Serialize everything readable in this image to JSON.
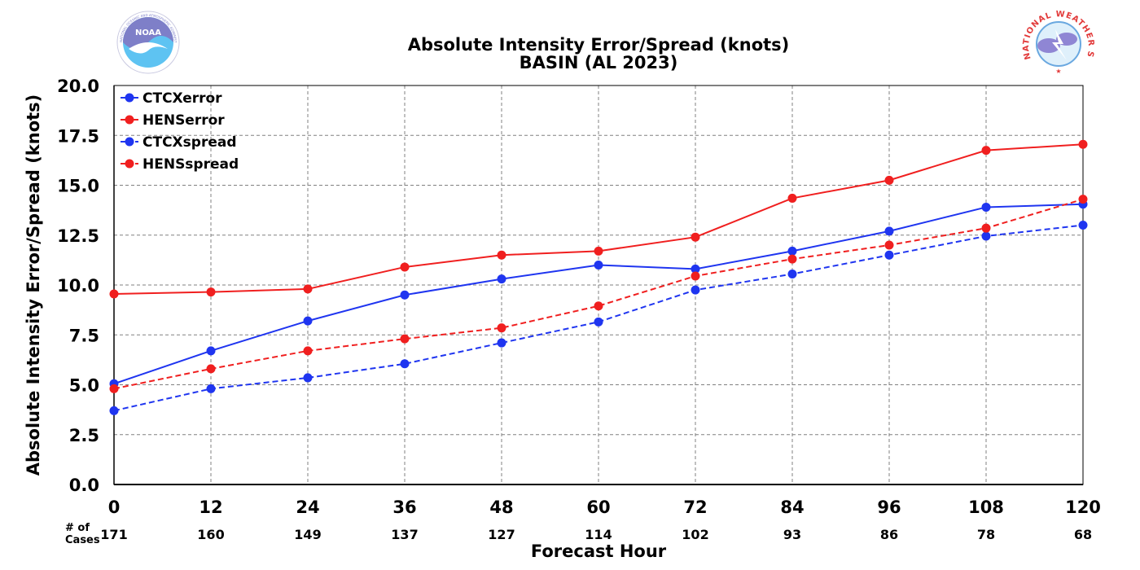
{
  "chart_data": {
    "type": "line",
    "title": "Absolute Intensity Error/Spread (knots)",
    "subtitle": "BASIN (AL 2023)",
    "xlabel": "Forecast Hour",
    "ylabel": "Absolute Intensity Error/Spread (knots)",
    "x": [
      0,
      12,
      24,
      36,
      48,
      60,
      72,
      84,
      96,
      108,
      120
    ],
    "xlim": [
      0,
      120
    ],
    "ylim": [
      0,
      20
    ],
    "yticks": [
      "0.0",
      "2.5",
      "5.0",
      "7.5",
      "10.0",
      "12.5",
      "15.0",
      "17.5",
      "20.0"
    ],
    "grid": true,
    "legend_position": "top-left",
    "cases_label": "# of\nCases",
    "cases": [
      "171",
      "160",
      "149",
      "137",
      "127",
      "114",
      "102",
      "93",
      "86",
      "78",
      "68"
    ],
    "series": [
      {
        "name": "CTCXerror",
        "color": "#1f35f0",
        "dash": "solid",
        "values": [
          5.05,
          6.7,
          8.2,
          9.5,
          10.3,
          11.0,
          10.8,
          11.7,
          12.7,
          13.9,
          14.05
        ]
      },
      {
        "name": "HENSerror",
        "color": "#f01f1f",
        "dash": "solid",
        "values": [
          9.55,
          9.65,
          9.8,
          10.9,
          11.5,
          11.7,
          12.4,
          14.35,
          15.25,
          16.75,
          17.05
        ]
      },
      {
        "name": "CTCXspread",
        "color": "#1f35f0",
        "dash": "dashed",
        "values": [
          3.7,
          4.8,
          5.35,
          6.05,
          7.1,
          8.15,
          9.75,
          10.55,
          11.5,
          12.45,
          13.0
        ]
      },
      {
        "name": "HENSspread",
        "color": "#f01f1f",
        "dash": "dashed",
        "values": [
          4.8,
          5.8,
          6.7,
          7.3,
          7.85,
          8.95,
          10.45,
          11.3,
          12.0,
          12.85,
          14.3
        ]
      }
    ]
  },
  "logos": {
    "left_text": "NOAA",
    "left_ring_text": "NATIONAL OCEANIC AND ATMOSPHERIC ADMINISTRATION · U.S. DEPARTMENT OF COMMERCE",
    "right_ring_text": "NATIONAL WEATHER SERVICE"
  }
}
